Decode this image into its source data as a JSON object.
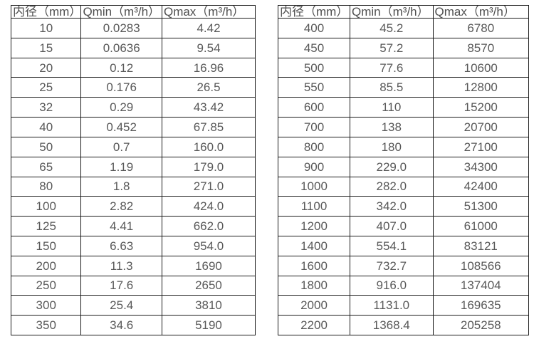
{
  "colors": {
    "background": "#ffffff",
    "border": "#1c1c1c",
    "text": "#595959",
    "header_text": "#4f4f4f"
  },
  "chart_data": [
    {
      "type": "table",
      "name": "inner-diameter-flow-range-small",
      "columns": [
        "内径（mm）",
        "Qmin（m³/h）",
        "Qmax（m³/h）"
      ],
      "rows": [
        [
          "10",
          "0.0283",
          "4.42"
        ],
        [
          "15",
          "0.0636",
          "9.54"
        ],
        [
          "20",
          "0.12",
          "16.96"
        ],
        [
          "25",
          "0.176",
          "26.5"
        ],
        [
          "32",
          "0.29",
          "43.42"
        ],
        [
          "40",
          "0.452",
          "67.85"
        ],
        [
          "50",
          "0.7",
          "160.0"
        ],
        [
          "65",
          "1.19",
          "179.0"
        ],
        [
          "80",
          "1.8",
          "271.0"
        ],
        [
          "100",
          "2.82",
          "424.0"
        ],
        [
          "125",
          "4.41",
          "662.0"
        ],
        [
          "150",
          "6.63",
          "954.0"
        ],
        [
          "200",
          "11.3",
          "1690"
        ],
        [
          "250",
          "17.6",
          "2650"
        ],
        [
          "300",
          "25.4",
          "3810"
        ],
        [
          "350",
          "34.6",
          "5190"
        ]
      ]
    },
    {
      "type": "table",
      "name": "inner-diameter-flow-range-large",
      "columns": [
        "内径（mm）",
        "Qmin（m³/h）",
        "Qmax（m³/h）"
      ],
      "rows": [
        [
          "400",
          "45.2",
          "6780"
        ],
        [
          "450",
          "57.2",
          "8570"
        ],
        [
          "500",
          "77.6",
          "10600"
        ],
        [
          "550",
          "85.5",
          "12800"
        ],
        [
          "600",
          "110",
          "15200"
        ],
        [
          "700",
          "138",
          "20700"
        ],
        [
          "800",
          "180",
          "27100"
        ],
        [
          "900",
          "229.0",
          "34300"
        ],
        [
          "1000",
          "282.0",
          "42400"
        ],
        [
          "1100",
          "342.0",
          "51300"
        ],
        [
          "1200",
          "407.0",
          "61000"
        ],
        [
          "1400",
          "554.1",
          "83121"
        ],
        [
          "1600",
          "732.7",
          "108566"
        ],
        [
          "1800",
          "916.0",
          "137404"
        ],
        [
          "2000",
          "1131.0",
          "169635"
        ],
        [
          "2200",
          "1368.4",
          "205258"
        ]
      ]
    }
  ]
}
